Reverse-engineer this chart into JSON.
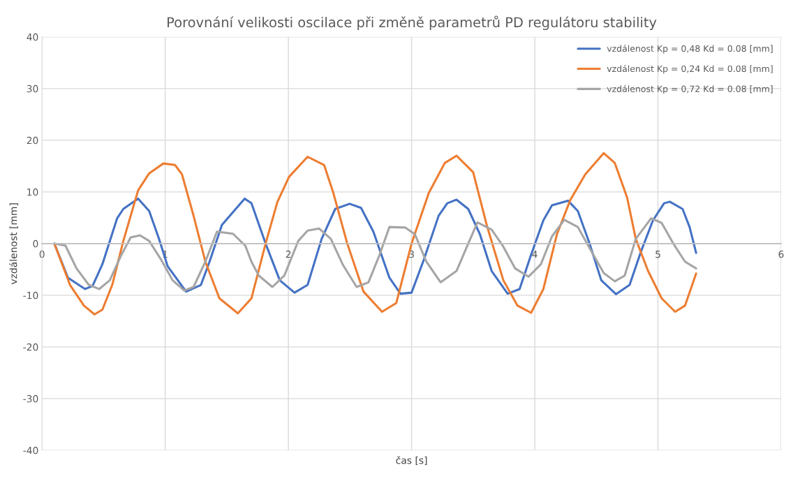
{
  "chart_data": {
    "type": "line",
    "title": "Porovnání velikosti oscilace při změně parametrů PD regulátoru stability",
    "xlabel": "čas [s]",
    "ylabel": "vzdálenost [mm]",
    "xlim": [
      0,
      6
    ],
    "xticks": [
      0,
      1,
      2,
      3,
      4,
      5,
      6
    ],
    "ylim": [
      -40,
      40
    ],
    "yticks": [
      -40,
      -30,
      -20,
      -10,
      0,
      10,
      20,
      30,
      40
    ],
    "grid": true,
    "legend": "top right",
    "marker": "none",
    "line_style": "solid",
    "series": [
      {
        "name": "vzdálenost Kp = 0,48 Kd = 0.08 [mm]",
        "color": "#4472c4",
        "x": [
          0.1,
          0.21,
          0.35,
          0.41,
          0.49,
          0.61,
          0.66,
          0.78,
          0.87,
          0.95,
          1.02,
          1.17,
          1.29,
          1.36,
          1.46,
          1.645,
          1.7,
          1.815,
          1.93,
          2.05,
          2.156,
          2.27,
          2.38,
          2.497,
          2.59,
          2.69,
          2.82,
          2.91,
          3.0,
          3.1,
          3.22,
          3.29,
          3.365,
          3.46,
          3.555,
          3.65,
          3.78,
          3.877,
          3.97,
          4.07,
          4.14,
          4.27,
          4.35,
          4.445,
          4.54,
          4.66,
          4.77,
          4.86,
          4.96,
          5.05,
          5.096,
          5.2,
          5.257,
          5.31
        ],
        "values": [
          0,
          -6.6,
          -8.8,
          -8.2,
          -4,
          4.9,
          6.7,
          8.7,
          6.3,
          0.9,
          -4.4,
          -9.3,
          -8,
          -3.5,
          3.6,
          8.7,
          7.8,
          0,
          -7.1,
          -9.5,
          -8,
          0.9,
          6.7,
          7.7,
          6.9,
          2.3,
          -6.6,
          -9.7,
          -9.5,
          -3.1,
          5.4,
          7.8,
          8.5,
          6.7,
          1.8,
          -5.3,
          -9.7,
          -8.8,
          -2.2,
          4.5,
          7.4,
          8.3,
          6.3,
          0,
          -7.1,
          -9.8,
          -8,
          -1.7,
          4.5,
          7.8,
          8.1,
          6.7,
          3.2,
          -1.8
        ]
      },
      {
        "name": "vzdálenost Kp = 0,24 Kd = 0.08 [mm]",
        "color": "#ed7d31",
        "x": [
          0.1,
          0.227,
          0.34,
          0.426,
          0.49,
          0.57,
          0.66,
          0.78,
          0.87,
          0.985,
          1.08,
          1.136,
          1.23,
          1.326,
          1.44,
          1.59,
          1.7,
          1.815,
          1.91,
          2.005,
          2.156,
          2.29,
          2.365,
          2.478,
          2.61,
          2.76,
          2.876,
          3.0,
          3.14,
          3.27,
          3.365,
          3.5,
          3.61,
          3.745,
          3.86,
          3.97,
          4.07,
          4.18,
          4.29,
          4.41,
          4.56,
          4.65,
          4.75,
          4.82,
          4.92,
          5.03,
          5.14,
          5.22,
          5.31
        ],
        "values": [
          0,
          -8,
          -12,
          -13.7,
          -12.8,
          -8,
          0.5,
          10.3,
          13.6,
          15.5,
          15.2,
          13.4,
          5.4,
          -3.5,
          -10.6,
          -13.5,
          -10.6,
          0,
          8,
          12.9,
          16.8,
          15.2,
          9.8,
          0,
          -9.3,
          -13.2,
          -11.5,
          0,
          9.8,
          15.6,
          17,
          13.8,
          3.6,
          -7.1,
          -12,
          -13.4,
          -8.8,
          1.8,
          8.5,
          13.4,
          17.5,
          15.6,
          8.9,
          0.9,
          -5.3,
          -10.6,
          -13.2,
          -12,
          -5.8
        ]
      },
      {
        "name": "vzdálenost Kp = 0,72 Kd = 0.08 [mm]",
        "color": "#a5a5a5",
        "x": [
          0.1,
          0.19,
          0.28,
          0.38,
          0.464,
          0.55,
          0.644,
          0.72,
          0.795,
          0.87,
          0.966,
          1.06,
          1.155,
          1.23,
          1.326,
          1.42,
          1.55,
          1.65,
          1.7,
          1.76,
          1.87,
          1.967,
          2.08,
          2.156,
          2.25,
          2.345,
          2.44,
          2.554,
          2.65,
          2.74,
          2.82,
          2.95,
          3.027,
          3.12,
          3.236,
          3.365,
          3.46,
          3.535,
          3.65,
          3.74,
          3.84,
          3.95,
          4.05,
          4.14,
          4.24,
          4.35,
          4.465,
          4.56,
          4.65,
          4.73,
          4.82,
          4.945,
          5.03,
          5.125,
          5.22,
          5.31
        ],
        "values": [
          0,
          -0.4,
          -4.8,
          -8,
          -8.8,
          -7.1,
          -2.2,
          1.2,
          1.6,
          0.5,
          -3.1,
          -7.1,
          -9.1,
          -8.4,
          -3.5,
          2.3,
          1.9,
          -0.4,
          -3.5,
          -6.2,
          -8.4,
          -6.2,
          0.5,
          2.5,
          2.9,
          0.9,
          -4,
          -8.4,
          -7.5,
          -2.2,
          3.2,
          3.1,
          1.8,
          -3.5,
          -7.5,
          -5.3,
          0,
          4.1,
          2.7,
          -0.4,
          -4.8,
          -6.4,
          -4,
          1.4,
          4.6,
          3.2,
          -1.7,
          -5.7,
          -7.3,
          -6.2,
          0.9,
          4.9,
          4,
          0,
          -3.5,
          -4.8
        ]
      }
    ]
  }
}
